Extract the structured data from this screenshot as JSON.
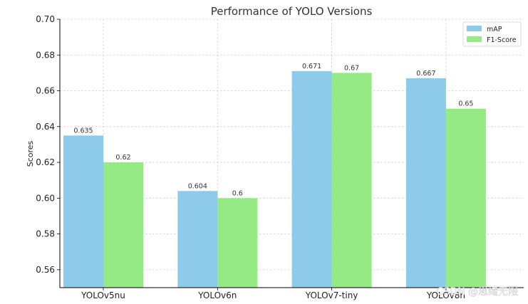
{
  "chart_data": {
    "type": "bar",
    "title": "Performance of YOLO Versions",
    "xlabel": "",
    "ylabel": "Scores",
    "categories": [
      "YOLOv5nu",
      "YOLOv6n",
      "YOLOv7-tiny",
      "YOLOv8n"
    ],
    "series": [
      {
        "name": "mAP",
        "values": [
          0.635,
          0.604,
          0.671,
          0.667
        ],
        "labels": [
          "0.635",
          "0.604",
          "0.671",
          "0.667"
        ],
        "color": "#8ecbeb"
      },
      {
        "name": "F1-Score",
        "values": [
          0.62,
          0.6,
          0.67,
          0.65
        ],
        "labels": [
          "0.62",
          "0.6",
          "0.67",
          "0.65"
        ],
        "color": "#95ea86"
      }
    ],
    "ylim": [
      0.55,
      0.7
    ],
    "yticks": [
      "0.56",
      "0.58",
      "0.60",
      "0.62",
      "0.64",
      "0.66",
      "0.68",
      "0.70"
    ],
    "grid": true,
    "legend_position": "top-right"
  },
  "watermark": "CSDN @思绪无限"
}
